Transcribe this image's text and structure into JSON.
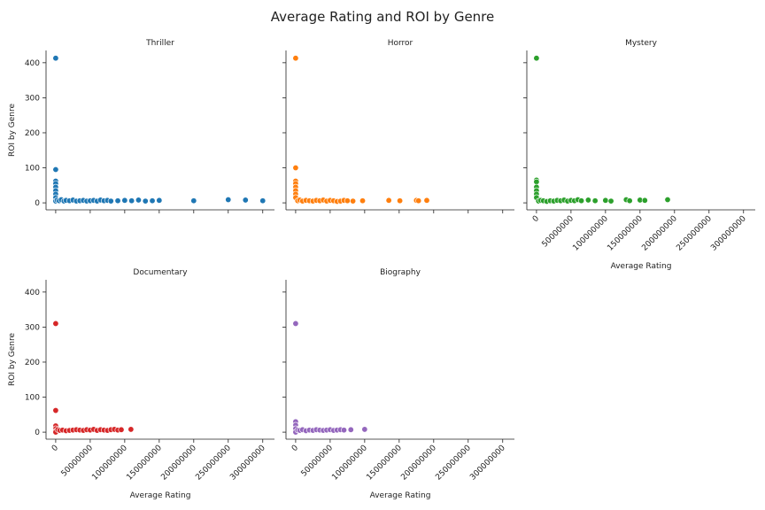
{
  "title": "Average Rating and ROI by Genre",
  "chart_data": [
    {
      "type": "scatter",
      "title": "Thriller",
      "color": "#1f77b4",
      "x": [
        0,
        0,
        0,
        0,
        0,
        0,
        0,
        0,
        0,
        2000000,
        5000000,
        8000000,
        12000000,
        15000000,
        20000000,
        25000000,
        30000000,
        35000000,
        40000000,
        45000000,
        50000000,
        55000000,
        60000000,
        65000000,
        70000000,
        75000000,
        80000000,
        90000000,
        100000000,
        110000000,
        120000000,
        130000000,
        140000000,
        150000000,
        200000000,
        250000000,
        275000000,
        300000000
      ],
      "y": [
        413,
        95,
        62,
        55,
        45,
        35,
        25,
        15,
        5,
        8,
        6,
        9,
        5,
        7,
        6,
        8,
        5,
        6,
        7,
        5,
        6,
        7,
        5,
        8,
        6,
        7,
        5,
        6,
        7,
        6,
        8,
        5,
        6,
        7,
        6,
        9,
        8,
        6
      ],
      "ylabel": "ROI by Genre",
      "xlim": [
        -14000000,
        317000000
      ],
      "ylim": [
        -20,
        435
      ],
      "xticks": [
        0,
        50000000,
        100000000,
        150000000,
        200000000,
        250000000,
        300000000
      ],
      "yticks": [
        0,
        100,
        200,
        300,
        400
      ]
    },
    {
      "type": "scatter",
      "title": "Horror",
      "color": "#ff7f0e",
      "x": [
        0,
        0,
        0,
        0,
        0,
        0,
        0,
        0,
        3000000,
        6000000,
        10000000,
        15000000,
        20000000,
        25000000,
        30000000,
        35000000,
        40000000,
        45000000,
        50000000,
        55000000,
        60000000,
        65000000,
        70000000,
        75000000,
        83000000,
        97000000,
        135000000,
        151000000,
        175000000,
        178000000,
        190000000
      ],
      "y": [
        413,
        100,
        62,
        55,
        45,
        35,
        25,
        15,
        6,
        8,
        5,
        7,
        6,
        5,
        7,
        6,
        8,
        5,
        7,
        6,
        4,
        5,
        7,
        6,
        5,
        6,
        7,
        6,
        7,
        6,
        7
      ],
      "xlim": [
        -14000000,
        317000000
      ],
      "ylim": [
        -20,
        435
      ],
      "xticks": [
        0,
        50000000,
        100000000,
        150000000,
        200000000,
        250000000,
        300000000
      ],
      "yticks": [
        0,
        100,
        200,
        300,
        400
      ]
    },
    {
      "type": "scatter",
      "title": "Mystery",
      "color": "#2ca02c",
      "x": [
        0,
        0,
        0,
        0,
        0,
        0,
        0,
        3000000,
        6000000,
        10000000,
        15000000,
        20000000,
        25000000,
        30000000,
        35000000,
        40000000,
        45000000,
        50000000,
        55000000,
        60000000,
        65000000,
        75000000,
        85000000,
        100000000,
        108000000,
        130000000,
        135000000,
        150000000,
        157000000,
        190000000
      ],
      "y": [
        413,
        65,
        60,
        45,
        35,
        25,
        15,
        5,
        7,
        6,
        4,
        6,
        5,
        7,
        6,
        8,
        5,
        7,
        6,
        9,
        6,
        8,
        6,
        7,
        5,
        9,
        6,
        8,
        7,
        9
      ],
      "xlabel": "Average Rating",
      "xlim": [
        -14000000,
        317000000
      ],
      "ylim": [
        -20,
        435
      ],
      "xticks": [
        0,
        50000000,
        100000000,
        150000000,
        200000000,
        250000000,
        300000000
      ],
      "yticks": [
        0,
        100,
        200,
        300,
        400
      ]
    },
    {
      "type": "scatter",
      "title": "Documentary",
      "color": "#d62728",
      "x": [
        0,
        0,
        0,
        0,
        0,
        0,
        3000000,
        6000000,
        10000000,
        15000000,
        20000000,
        25000000,
        30000000,
        35000000,
        40000000,
        45000000,
        50000000,
        55000000,
        60000000,
        65000000,
        70000000,
        75000000,
        80000000,
        85000000,
        90000000,
        95000000,
        109000000
      ],
      "y": [
        310,
        62,
        18,
        10,
        3,
        0,
        7,
        5,
        6,
        4,
        5,
        6,
        7,
        6,
        5,
        7,
        6,
        8,
        5,
        7,
        6,
        5,
        7,
        8,
        6,
        7,
        8
      ],
      "xlabel": "Average Rating",
      "ylabel": "ROI by Genre",
      "xlim": [
        -14000000,
        317000000
      ],
      "ylim": [
        -20,
        435
      ],
      "xticks": [
        0,
        50000000,
        100000000,
        150000000,
        200000000,
        250000000,
        300000000
      ],
      "yticks": [
        0,
        100,
        200,
        300,
        400
      ]
    },
    {
      "type": "scatter",
      "title": "Biography",
      "color": "#9467bd",
      "x": [
        0,
        0,
        0,
        0,
        0,
        3000000,
        6000000,
        10000000,
        15000000,
        20000000,
        25000000,
        30000000,
        35000000,
        40000000,
        45000000,
        50000000,
        55000000,
        60000000,
        65000000,
        70000000,
        80000000,
        100000000
      ],
      "y": [
        310,
        30,
        20,
        10,
        0,
        6,
        5,
        7,
        4,
        6,
        5,
        7,
        6,
        5,
        6,
        7,
        5,
        6,
        7,
        6,
        7,
        8
      ],
      "xlabel": "Average Rating",
      "xlim": [
        -14000000,
        317000000
      ],
      "ylim": [
        -20,
        435
      ],
      "xticks": [
        0,
        50000000,
        100000000,
        150000000,
        200000000,
        250000000,
        300000000
      ],
      "yticks": [
        0,
        100,
        200,
        300,
        400
      ]
    }
  ]
}
